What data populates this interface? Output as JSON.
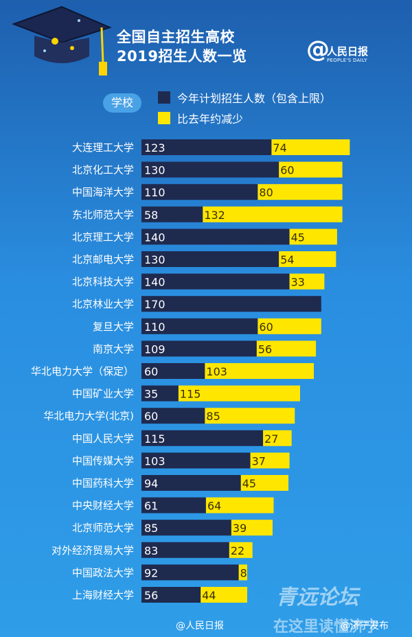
{
  "header": {
    "title_line1": "全国自主招生高校",
    "title_line2": "2019招生人数一览",
    "logo_text": "人民日报",
    "logo_sub": "PEOPLE'S DAILY"
  },
  "school_label": "学校",
  "legend": {
    "plan_label": "今年计划招生人数（包含上限）",
    "decrease_label": "比去年约减少"
  },
  "colors": {
    "plan": "#1f2a4f",
    "decrease": "#ffe600",
    "background": "#2a8ee0"
  },
  "chart_data": {
    "type": "bar",
    "orientation": "horizontal",
    "stacked": true,
    "title": "全国自主招生高校 2019招生人数一览",
    "categories": [
      "大连理工大学",
      "北京化工大学",
      "中国海洋大学",
      "东北师范大学",
      "北京理工大学",
      "北京邮电大学",
      "北京科技大学",
      "北京林业大学",
      "复旦大学",
      "南京大学",
      "华北电力大学（保定）",
      "中国矿业大学",
      "华北电力大学(北京)",
      "中国人民大学",
      "中国传媒大学",
      "中国药科大学",
      "中央财经大学",
      "北京师范大学",
      "对外经济贸易大学",
      "中国政法大学",
      "上海财经大学"
    ],
    "series": [
      {
        "name": "今年计划招生人数（包含上限）",
        "values": [
          123,
          130,
          110,
          58,
          140,
          130,
          140,
          170,
          110,
          109,
          60,
          35,
          60,
          115,
          103,
          94,
          61,
          85,
          83,
          92,
          56
        ]
      },
      {
        "name": "比去年约减少",
        "values": [
          74,
          60,
          80,
          132,
          45,
          54,
          33,
          null,
          60,
          56,
          103,
          115,
          85,
          27,
          37,
          45,
          64,
          39,
          22,
          8,
          44
        ]
      }
    ],
    "value_labels": {
      "plan": [
        "123",
        "130",
        "110",
        "58",
        "140",
        "130",
        "140",
        "170",
        "110",
        "109",
        "60",
        "35",
        "60",
        "115",
        "103",
        "94",
        "61",
        "85",
        "83",
        "92",
        "56"
      ],
      "decrease": [
        "74",
        "60",
        "80",
        "132",
        "45",
        "54",
        "33",
        "",
        "60",
        "56",
        "103",
        "115",
        "85",
        "27",
        "37",
        "45",
        "64",
        "39",
        "22",
        "8",
        "44"
      ]
    }
  },
  "footer": {
    "left": "@人民日报",
    "right": "@济宁发布"
  },
  "watermark": {
    "line1": "青远论坛",
    "line2": "在这里读懂济宁"
  }
}
